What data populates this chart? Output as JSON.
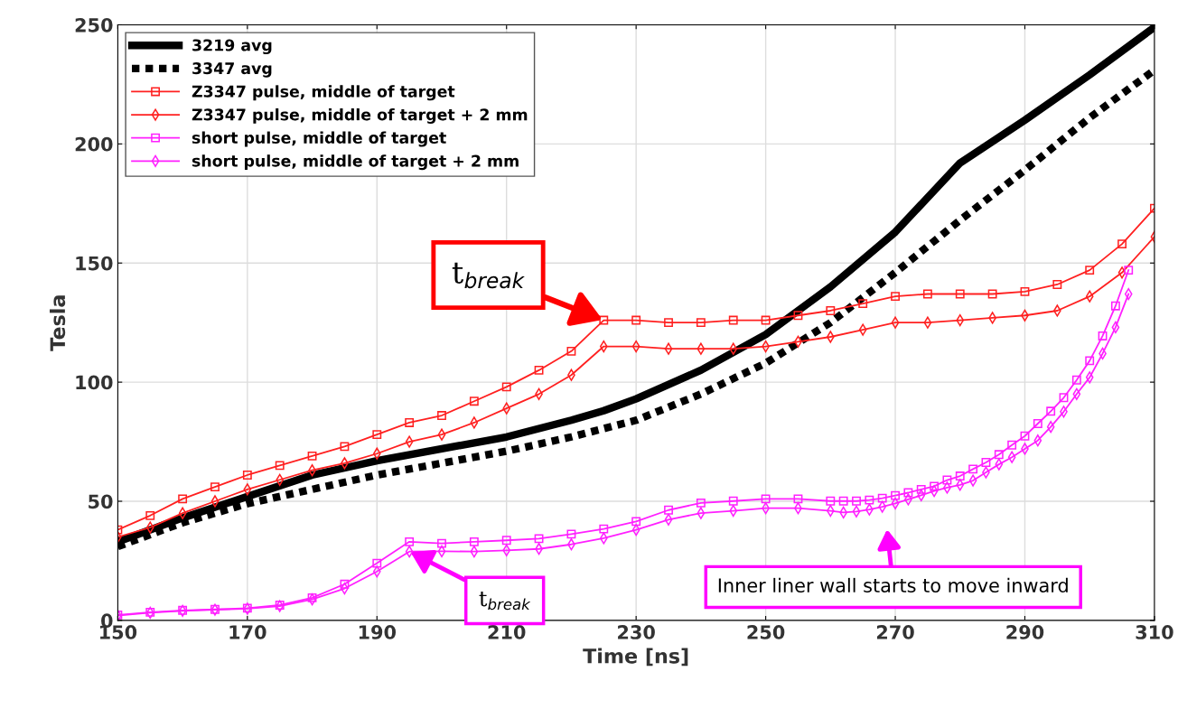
{
  "chart_data": {
    "type": "line",
    "xlabel": "Time [ns]",
    "ylabel": "Tesla",
    "xlim": [
      150,
      310
    ],
    "xticks": [
      150,
      170,
      190,
      210,
      230,
      250,
      270,
      290,
      310
    ],
    "ylim": [
      0,
      250
    ],
    "yticks": [
      0,
      50,
      100,
      150,
      200,
      250
    ],
    "grid": true,
    "legend": "top left",
    "series": [
      {
        "name": "3219 avg",
        "color": "#000000",
        "marker": "none",
        "line_style": "solid",
        "x": [
          150,
          160,
          170,
          180,
          190,
          200,
          210,
          220,
          225,
          230,
          240,
          250,
          260,
          270,
          280,
          290,
          300,
          310
        ],
        "values": [
          33,
          43,
          52,
          61,
          67,
          72,
          77,
          84,
          88,
          93,
          105,
          120,
          140,
          163,
          192,
          210,
          229,
          249
        ]
      },
      {
        "name": "3347 avg",
        "color": "#000000",
        "marker": "none",
        "line_style": "dotted",
        "x": [
          150,
          160,
          170,
          180,
          190,
          200,
          210,
          220,
          230,
          240,
          250,
          260,
          270,
          280,
          290,
          300,
          310
        ],
        "values": [
          31,
          41,
          49,
          55,
          61,
          66,
          71,
          77,
          84,
          95,
          108,
          125,
          146,
          168,
          189,
          211,
          231
        ]
      },
      {
        "name": "Z3347 pulse, middle of target",
        "color": "#ff2020",
        "marker": "square",
        "line_style": "solid",
        "x": [
          150,
          155,
          160,
          165,
          170,
          175,
          180,
          185,
          190,
          195,
          200,
          205,
          210,
          215,
          220,
          225,
          230,
          235,
          240,
          245,
          250,
          255,
          260,
          265,
          270,
          275,
          280,
          285,
          290,
          295,
          300,
          305,
          310
        ],
        "values": [
          38,
          44,
          51,
          56,
          61,
          65,
          69,
          73,
          78,
          83,
          86,
          92,
          98,
          105,
          113,
          126,
          126,
          125,
          125,
          126,
          126,
          128,
          130,
          133,
          136,
          137,
          137,
          137,
          138,
          141,
          147,
          158,
          173
        ]
      },
      {
        "name": "Z3347 pulse, middle of target + 2 mm",
        "color": "#ff2020",
        "marker": "diamond",
        "line_style": "solid",
        "x": [
          150,
          155,
          160,
          165,
          170,
          175,
          180,
          185,
          190,
          195,
          200,
          205,
          210,
          215,
          220,
          225,
          230,
          235,
          240,
          245,
          250,
          255,
          260,
          265,
          270,
          275,
          280,
          285,
          290,
          295,
          300,
          305,
          310
        ],
        "values": [
          35,
          39,
          45,
          50,
          55,
          59,
          63,
          66,
          70,
          75,
          78,
          83,
          89,
          95,
          103,
          115,
          115,
          114,
          114,
          114,
          115,
          117,
          119,
          122,
          125,
          125,
          126,
          127,
          128,
          130,
          136,
          146,
          161
        ]
      },
      {
        "name": "short pulse, middle of target",
        "color": "#ff20ff",
        "marker": "square",
        "line_style": "solid",
        "x": [
          150,
          155,
          160,
          165,
          170,
          175,
          180,
          185,
          190,
          195,
          200,
          205,
          210,
          215,
          220,
          225,
          230,
          235,
          240,
          245,
          250,
          255,
          260,
          262,
          264,
          266,
          268,
          270,
          272,
          274,
          276,
          278,
          280,
          282,
          284,
          286,
          288,
          290,
          292,
          294,
          296,
          298,
          300,
          302,
          304,
          306
        ],
        "values": [
          2.3,
          3.4,
          4.2,
          4.6,
          5.1,
          6.4,
          9.5,
          15.2,
          24,
          33,
          32.3,
          33,
          33.6,
          34.3,
          36.2,
          38.4,
          41.5,
          46.3,
          49.3,
          50.1,
          51,
          51,
          50.1,
          50.1,
          50.1,
          50.5,
          51.3,
          52.4,
          53.6,
          55,
          56.3,
          58.9,
          60.6,
          63.5,
          66.3,
          69.6,
          73.6,
          77.4,
          82.6,
          87.8,
          93.5,
          100.9,
          109,
          119.4,
          132,
          147
        ]
      },
      {
        "name": "short pulse, middle of target + 2 mm",
        "color": "#ff20ff",
        "marker": "diamond",
        "line_style": "solid",
        "x": [
          150,
          155,
          160,
          165,
          170,
          175,
          180,
          185,
          190,
          195,
          200,
          205,
          210,
          215,
          220,
          225,
          230,
          235,
          240,
          245,
          250,
          255,
          260,
          262,
          264,
          266,
          268,
          270,
          272,
          274,
          276,
          278,
          280,
          282,
          284,
          286,
          288,
          290,
          292,
          294,
          296,
          298,
          300,
          302,
          304,
          306
        ],
        "values": [
          2,
          3.2,
          4,
          4.5,
          4.9,
          6,
          8.8,
          13.4,
          20.5,
          28.9,
          29,
          28.9,
          29.4,
          30,
          31.9,
          34.5,
          38,
          42.3,
          45,
          46,
          47.1,
          47.1,
          46,
          45.3,
          45.7,
          46.5,
          47.7,
          49.1,
          50.8,
          52.5,
          54.3,
          55.7,
          56.9,
          58.7,
          62.1,
          65.5,
          68.5,
          72,
          75.5,
          81.2,
          87.6,
          95,
          102,
          112,
          123,
          137
        ]
      }
    ],
    "annotations": [
      {
        "text": "t$_{break}$",
        "x": 225,
        "y": 126
      },
      {
        "text": "t$_{break}$",
        "x": 195,
        "y": 28.9
      },
      "Inner liner wall starts to move inward"
    ]
  }
}
